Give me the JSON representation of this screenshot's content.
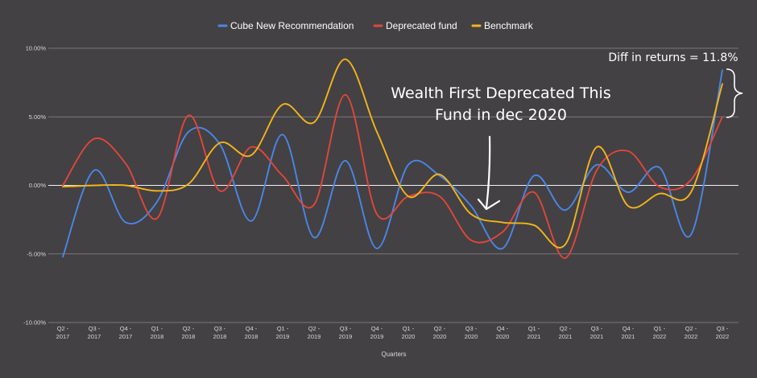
{
  "chart_data": {
    "type": "line",
    "title": "",
    "xlabel": "Quarters",
    "ylabel": "",
    "ylim": [
      -10,
      10
    ],
    "y_ticks": [
      "10.00%",
      "5.00%",
      "0.00%",
      "-5.00%",
      "-10.00%"
    ],
    "y_tick_values": [
      10,
      5,
      0,
      -5,
      -10
    ],
    "categories": [
      [
        "Q2 -",
        "2017"
      ],
      [
        "Q3 -",
        "2017"
      ],
      [
        "Q4 -",
        "2017"
      ],
      [
        "Q1 -",
        "2018"
      ],
      [
        "Q2 -",
        "2018"
      ],
      [
        "Q3 -",
        "2018"
      ],
      [
        "Q4 -",
        "2018"
      ],
      [
        "Q1 -",
        "2019"
      ],
      [
        "Q2 -",
        "2019"
      ],
      [
        "Q3 -",
        "2019"
      ],
      [
        "Q4 -",
        "2019"
      ],
      [
        "Q1 -",
        "2020"
      ],
      [
        "Q2 -",
        "2020"
      ],
      [
        "Q3 -",
        "2020"
      ],
      [
        "Q4 -",
        "2020"
      ],
      [
        "Q1 -",
        "2021"
      ],
      [
        "Q2 -",
        "2021"
      ],
      [
        "Q3 -",
        "2021"
      ],
      [
        "Q4 -",
        "2021"
      ],
      [
        "Q1 -",
        "2022"
      ],
      [
        "Q2 -",
        "2022"
      ],
      [
        "Q3 -",
        "2022"
      ]
    ],
    "grid": true,
    "legend_position": "top-center",
    "series": [
      {
        "name": "Cube New Recommendation",
        "color": "#4a86e8",
        "values": [
          -5.2,
          1.1,
          -2.7,
          -1.2,
          3.9,
          3.0,
          -2.6,
          3.7,
          -3.8,
          1.8,
          -4.6,
          1.5,
          0.7,
          -1.5,
          -4.6,
          0.7,
          -1.8,
          1.5,
          -0.5,
          1.3,
          -3.6,
          8.4
        ]
      },
      {
        "name": "Deprecated fund",
        "color": "#e0463c",
        "values": [
          0.0,
          3.4,
          1.6,
          -2.4,
          5.1,
          -0.4,
          2.8,
          0.7,
          -1.4,
          6.6,
          -2.1,
          -0.8,
          -0.8,
          -4.0,
          -3.4,
          -0.5,
          -5.3,
          1.1,
          2.5,
          -0.1,
          0.4,
          5.0
        ]
      },
      {
        "name": "Benchmark",
        "color": "#f3b41c",
        "values": [
          -0.1,
          0.0,
          0.0,
          -0.4,
          0.1,
          3.1,
          2.2,
          5.9,
          4.6,
          9.2,
          3.9,
          -0.8,
          0.8,
          -2.1,
          -2.7,
          -2.9,
          -4.3,
          2.8,
          -1.5,
          -0.6,
          -0.5,
          7.4
        ]
      }
    ],
    "annotations": {
      "arrow_text": [
        "Wealth First Deprecated This",
        "Fund in dec 2020"
      ],
      "diff_text": "Diff in returns = 11.8%"
    }
  }
}
